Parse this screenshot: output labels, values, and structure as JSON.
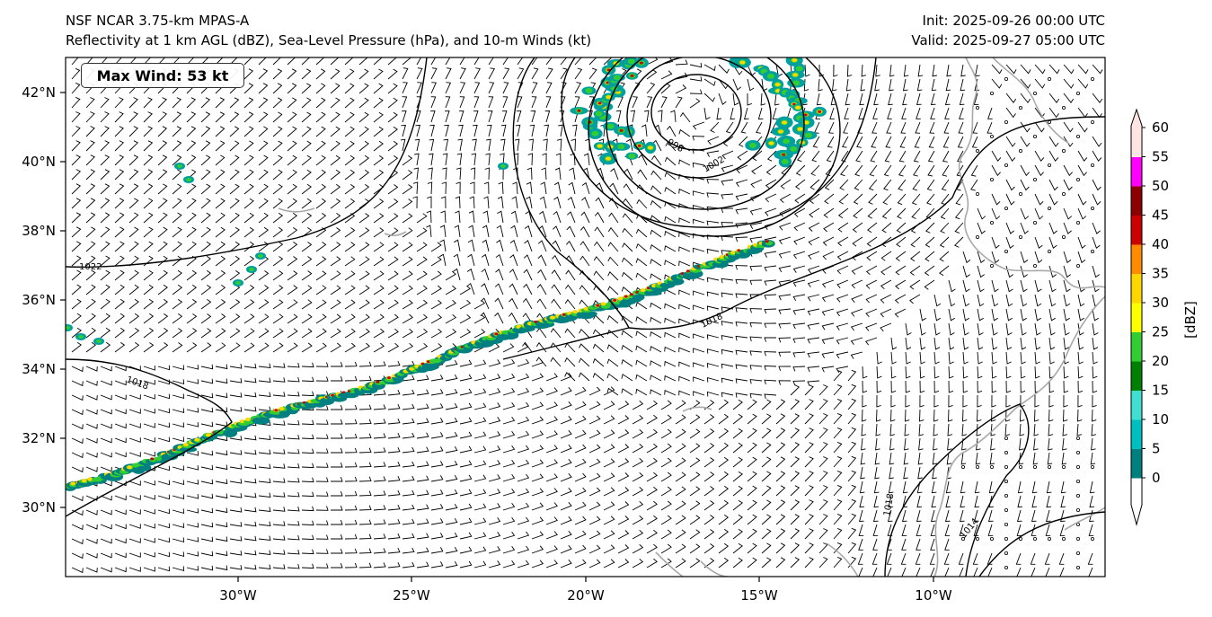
{
  "titles": {
    "left_line1": "NSF NCAR 3.75-km MPAS-A",
    "left_line2": "Reflectivity at 1 km AGL (dBZ), Sea-Level Pressure (hPa), and 10-m Winds (kt)",
    "right_line1": "Init: 2025-09-26 00:00 UTC",
    "right_line2": "Valid: 2025-09-27 05:00 UTC"
  },
  "annotation": {
    "max_wind": "Max Wind: 53 kt"
  },
  "axes": {
    "x_ticks": [
      "30°W",
      "25°W",
      "20°W",
      "15°W",
      "10°W"
    ],
    "y_ticks": [
      "42°N",
      "40°N",
      "38°N",
      "36°N",
      "34°N",
      "32°N",
      "30°N"
    ]
  },
  "isobar_labels": [
    "1022",
    "1018",
    "1018",
    "1018",
    "1014",
    "998",
    "1002"
  ],
  "colorbar": {
    "unit_label": "[dBZ]",
    "tick_labels": [
      "0",
      "5",
      "10",
      "15",
      "20",
      "25",
      "30",
      "35",
      "40",
      "45",
      "50",
      "55",
      "60"
    ],
    "colors": [
      "#007f7f",
      "#00bfbf",
      "#40e0d0",
      "#008000",
      "#32cd32",
      "#ffff00",
      "#ffd700",
      "#ff8c00",
      "#cc0000",
      "#8b0000",
      "#ff00ff",
      "#ffe4e1"
    ]
  }
}
